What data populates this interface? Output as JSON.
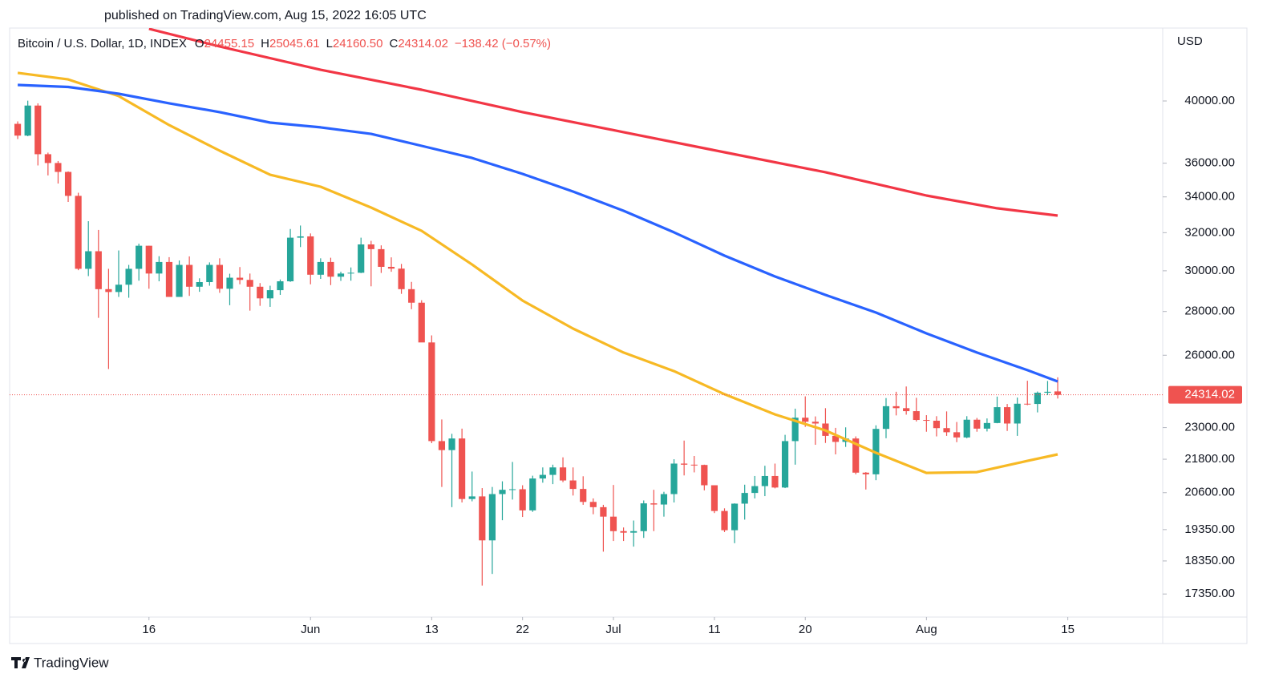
{
  "header": "published on TradingView.com, Aug 15, 2022 16:05 UTC",
  "footer": "TradingView",
  "chart_data": {
    "type": "candlestick",
    "title": "Bitcoin / U.S. Dollar, 1D, INDEX",
    "ohlc_legend": [
      {
        "key": "O",
        "value": "24455.15"
      },
      {
        "key": "H",
        "value": "25045.61"
      },
      {
        "key": "L",
        "value": "24160.50"
      },
      {
        "key": "C",
        "value": "24314.02"
      }
    ],
    "change": "−138.42 (−0.57%)",
    "currency": "USD",
    "up_color": "#26a69a",
    "down_color": "#ef5350",
    "log_scale": true,
    "open": [
      38480,
      37720,
      39690,
      36550,
      36010,
      35470,
      34060,
      30100,
      31010,
      29080,
      28940,
      29300,
      30100,
      31300,
      29860,
      30450,
      28700,
      30300,
      29200,
      29430,
      30300,
      29100,
      29650,
      29540,
      29200,
      28630,
      29030,
      29470,
      31730,
      31800,
      29800,
      30450,
      29700,
      29860,
      29900,
      31370,
      31120,
      30200,
      30110,
      29080,
      28420,
      26570,
      22480,
      22140,
      22580,
      20380,
      20470,
      19000,
      20550,
      20700,
      20720,
      19990,
      21100,
      21230,
      21500,
      21030,
      20730,
      20280,
      20100,
      19780,
      19300,
      19250,
      19300,
      20230,
      20190,
      20550,
      21640,
      21600,
      21590,
      20860,
      19970,
      19330,
      20220,
      20590,
      20830,
      21190,
      20780,
      22480,
      23390,
      23230,
      23160,
      22680,
      22450,
      22580,
      21310,
      21250,
      22950,
      23850,
      23770,
      23650,
      23300,
      23270,
      22980,
      22820,
      22620,
      23310,
      22960,
      23180,
      23810,
      23160,
      23950,
      23940,
      24400,
      24455.15
    ],
    "high": [
      38640,
      40020,
      39840,
      36650,
      36130,
      35500,
      34240,
      32630,
      32150,
      30100,
      31050,
      30300,
      31410,
      31300,
      30750,
      30700,
      30530,
      30740,
      29620,
      30430,
      30640,
      29850,
      30190,
      29860,
      29380,
      29250,
      29560,
      32200,
      32390,
      31960,
      30640,
      30670,
      29950,
      30170,
      31730,
      31560,
      31320,
      30690,
      30350,
      29440,
      28540,
      26890,
      23320,
      22760,
      22960,
      21350,
      20760,
      20800,
      21000,
      21700,
      20860,
      21200,
      21500,
      21600,
      21870,
      21500,
      21180,
      20400,
      20180,
      20870,
      19420,
      19650,
      20330,
      20700,
      20630,
      21800,
      22500,
      21920,
      21600,
      20860,
      20060,
      20230,
      20880,
      21190,
      21560,
      21640,
      22720,
      23750,
      24250,
      23440,
      23770,
      22990,
      23010,
      22660,
      21330,
      23090,
      24180,
      24440,
      24660,
      24190,
      23490,
      23450,
      23640,
      23220,
      23450,
      23380,
      23360,
      24240,
      23940,
      24200,
      24900,
      24450,
      24890,
      25045.61
    ],
    "low": [
      37500,
      37680,
      35860,
      35260,
      34780,
      33710,
      30030,
      29730,
      27700,
      25400,
      28700,
      28660,
      29500,
      29100,
      29470,
      28700,
      28700,
      28750,
      28950,
      29250,
      28900,
      28300,
      29320,
      28040,
      28270,
      28220,
      28800,
      29440,
      31230,
      29320,
      29590,
      29280,
      29490,
      29500,
      29880,
      29220,
      29890,
      29950,
      28850,
      28110,
      26600,
      22400,
      20800,
      20100,
      20260,
      20300,
      17600,
      17950,
      19660,
      20360,
      19770,
      19940,
      20950,
      20900,
      20970,
      20500,
      20180,
      19860,
      18640,
      18980,
      18980,
      18800,
      19080,
      19300,
      19780,
      20260,
      21210,
      21320,
      20680,
      19900,
      19270,
      18910,
      19680,
      20400,
      20480,
      20750,
      20760,
      21600,
      23030,
      22340,
      22410,
      21980,
      22260,
      21250,
      20710,
      21040,
      22590,
      23480,
      23510,
      23240,
      22840,
      22660,
      22680,
      22440,
      22590,
      22840,
      22850,
      23170,
      22870,
      22680,
      23890,
      23600,
      24300,
      24160.5
    ],
    "close": [
      37720,
      39690,
      36550,
      36010,
      35470,
      34060,
      30100,
      31010,
      29080,
      28940,
      29300,
      30100,
      31300,
      29860,
      30450,
      28700,
      30300,
      29200,
      29430,
      30300,
      29100,
      29650,
      29540,
      29200,
      28630,
      29030,
      29470,
      31730,
      31800,
      29800,
      30450,
      29700,
      29860,
      29900,
      31370,
      31120,
      30200,
      30110,
      29080,
      28420,
      26570,
      22480,
      22140,
      22580,
      20380,
      20470,
      19000,
      20550,
      20700,
      20720,
      19990,
      21100,
      21230,
      21500,
      21030,
      20730,
      20280,
      20100,
      19780,
      19300,
      19250,
      19300,
      20230,
      20190,
      20550,
      21640,
      21600,
      21590,
      20860,
      19970,
      19330,
      20220,
      20590,
      20830,
      21190,
      20780,
      22480,
      23390,
      23230,
      23160,
      22680,
      22450,
      22580,
      21310,
      21250,
      22950,
      23850,
      23770,
      23650,
      23300,
      23270,
      22980,
      22820,
      22620,
      23310,
      22960,
      23180,
      23810,
      23160,
      23950,
      23940,
      24400,
      24440,
      24314.02
    ],
    "lines": [
      {
        "color": "#f7b924",
        "x": [
          0,
          5,
          10,
          15,
          20,
          25,
          30,
          35,
          40,
          45,
          50,
          55,
          60,
          65,
          70,
          75,
          80,
          85,
          90,
          95,
          100,
          103
        ],
        "values": [
          41950,
          41490,
          40330,
          38400,
          36770,
          35300,
          34590,
          33390,
          32100,
          30320,
          28520,
          27200,
          26120,
          25310,
          24340,
          23520,
          22890,
          22040,
          21300,
          21330,
          21740,
          21980
        ]
      },
      {
        "color": "#2962ff",
        "x": [
          0,
          5,
          10,
          15,
          20,
          25,
          30,
          35,
          40,
          45,
          50,
          55,
          60,
          65,
          70,
          75,
          80,
          85,
          90,
          95,
          100,
          103
        ],
        "values": [
          41100,
          40960,
          40490,
          39840,
          39250,
          38560,
          38250,
          37830,
          37070,
          36320,
          35350,
          34310,
          33210,
          32020,
          30780,
          29710,
          28800,
          27950,
          26980,
          26120,
          25350,
          24870
        ]
      },
      {
        "color": "#f23645",
        "x": [
          13,
          20,
          30,
          40,
          50,
          60,
          70,
          80,
          90,
          97,
          103
        ],
        "values": [
          45200,
          43870,
          42170,
          40770,
          39250,
          37940,
          36670,
          35450,
          34080,
          33350,
          32940
        ]
      }
    ],
    "last_price": {
      "value": 24314.02,
      "label": "24314.02"
    },
    "xlim": [
      -0.8,
      113.4
    ],
    "ylim": [
      16685,
      45260
    ],
    "xticks": [
      {
        "value": 13,
        "label": "16"
      },
      {
        "value": 29,
        "label": "Jun"
      },
      {
        "value": 41,
        "label": "13"
      },
      {
        "value": 50,
        "label": "22"
      },
      {
        "value": 59,
        "label": "Jul"
      },
      {
        "value": 69,
        "label": "11"
      },
      {
        "value": 78,
        "label": "20"
      },
      {
        "value": 90,
        "label": "Aug"
      },
      {
        "value": 104,
        "label": "15"
      }
    ],
    "yticks": [
      {
        "value": 40000,
        "label": "40000.00"
      },
      {
        "value": 36000,
        "label": "36000.00"
      },
      {
        "value": 34000,
        "label": "34000.00"
      },
      {
        "value": 32000,
        "label": "32000.00"
      },
      {
        "value": 30000,
        "label": "30000.00"
      },
      {
        "value": 28000,
        "label": "28000.00"
      },
      {
        "value": 26000,
        "label": "26000.00"
      },
      {
        "value": 23000,
        "label": "23000.00"
      },
      {
        "value": 21800,
        "label": "21800.00"
      },
      {
        "value": 20600,
        "label": "20600.00"
      },
      {
        "value": 19350,
        "label": "19350.00"
      },
      {
        "value": 18350,
        "label": "18350.00"
      },
      {
        "value": 17350,
        "label": "17350.00"
      }
    ]
  }
}
